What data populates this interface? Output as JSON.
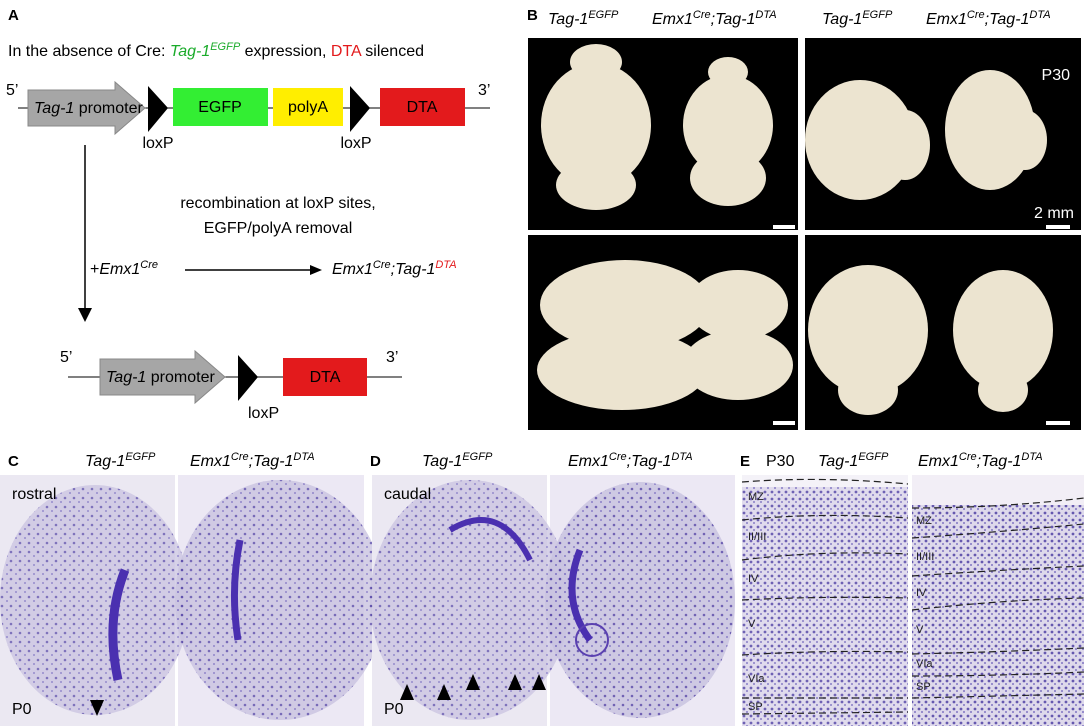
{
  "panel_a": {
    "label": "A",
    "header": {
      "prefix": "In the absence of Cre:",
      "gene": "Tag-1",
      "sup": "EGFP",
      "mid": "expression,",
      "dta": "DTA",
      "suffix": "silenced"
    },
    "top": {
      "five": "5’",
      "three": "3’",
      "promoter_gene": "Tag-1",
      "promoter": "promoter",
      "egfp": "EGFP",
      "polya": "polyA",
      "dta": "DTA",
      "loxp_1": "loxP",
      "loxp_2": "loxP"
    },
    "recombination": [
      "recombination at loxP sites,",
      "EGFP/polyA removal"
    ],
    "cross": {
      "plus": "+",
      "cre": "Emx1",
      "cre_sup": "Cre",
      "result_cre": "Emx1",
      "result_cre_sup": "Cre",
      "result_gene": ";Tag-1",
      "result_sup": "DTA"
    },
    "bottom": {
      "five": "5’",
      "three": "3’",
      "promoter_gene": "Tag-1",
      "promoter": "promoter",
      "dta": "DTA",
      "loxp": "loxP"
    }
  },
  "panel_b": {
    "label": "B",
    "headers": [
      {
        "gene": "Tag-1",
        "sup": "EGFP"
      },
      {
        "cre": "Emx1",
        "cre_sup": "Cre",
        "gene": ";Tag-1",
        "sup": "DTA"
      },
      {
        "gene": "Tag-1",
        "sup": "EGFP"
      },
      {
        "cre": "Emx1",
        "cre_sup": "Cre",
        "gene": ";Tag-1",
        "sup": "DTA"
      }
    ],
    "age": "P30",
    "scale": "2 mm"
  },
  "panel_c": {
    "label": "C",
    "headers": [
      {
        "gene": "Tag-1",
        "sup": "EGFP"
      },
      {
        "cre": "Emx1",
        "cre_sup": "Cre",
        "gene": ";Tag-1",
        "sup": "DTA"
      }
    ],
    "region": "rostral",
    "age": "P0"
  },
  "panel_d": {
    "label": "D",
    "headers": [
      {
        "gene": "Tag-1",
        "sup": "EGFP"
      },
      {
        "cre": "Emx1",
        "cre_sup": "Cre",
        "gene": ";Tag-1",
        "sup": "DTA"
      }
    ],
    "region": "caudal",
    "age": "P0"
  },
  "panel_e": {
    "label": "E",
    "age": "P30",
    "headers": [
      {
        "gene": "Tag-1",
        "sup": "EGFP"
      },
      {
        "cre": "Emx1",
        "cre_sup": "Cre",
        "gene": ";Tag-1",
        "sup": "DTA"
      }
    ],
    "layers_left": [
      "MZ",
      "II/III",
      "IV",
      "V",
      "VIa",
      "SP"
    ],
    "layers_right": [
      "MZ",
      "II/III",
      "IV",
      "V",
      "VIa",
      "SP"
    ]
  }
}
